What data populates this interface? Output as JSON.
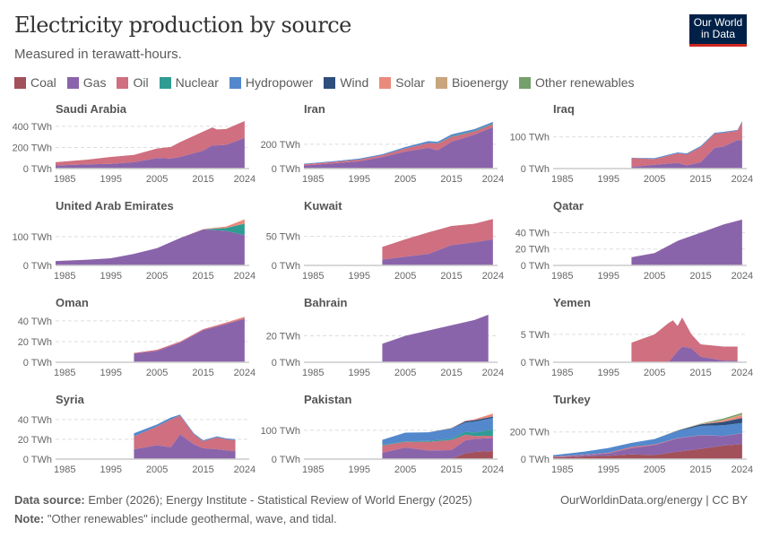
{
  "title": "Electricity production by source",
  "subtitle": "Measured in terawatt-hours.",
  "logo": "Our World in Data",
  "footer": {
    "source_label": "Data source:",
    "source": "Ember (2026); Energy Institute - Statistical Review of World Energy (2025)",
    "note_label": "Note:",
    "note": "\"Other renewables\" include geothermal, wave, and tidal.",
    "credit": "OurWorldinData.org/energy | CC BY"
  },
  "chart_data": {
    "type": "area",
    "stacked": true,
    "unit": "TWh",
    "xlim": [
      1983,
      2025
    ],
    "xticks": [
      1985,
      1995,
      2005,
      2015,
      2024
    ],
    "grid": "dashed horizontal",
    "legend_position": "top",
    "sources": [
      "Coal",
      "Gas",
      "Oil",
      "Nuclear",
      "Hydropower",
      "Wind",
      "Solar",
      "Bioenergy",
      "Other renewables"
    ],
    "colors": {
      "Coal": "#a2505a",
      "Gas": "#8a64ab",
      "Oil": "#cf6f7f",
      "Nuclear": "#2f9c93",
      "Hydropower": "#5388cc",
      "Wind": "#2e4f7c",
      "Solar": "#ea8a7c",
      "Bioenergy": "#c8a57c",
      "Other renewables": "#74a06a"
    },
    "panels": [
      {
        "name": "Saudi Arabia",
        "ylim": [
          0,
          450
        ],
        "yticks": [
          0,
          200,
          400
        ],
        "years": [
          1983,
          1990,
          1995,
          2000,
          2005,
          2008,
          2010,
          2015,
          2017,
          2018,
          2020,
          2024
        ],
        "series": {
          "Gas": [
            30,
            40,
            45,
            60,
            100,
            95,
            110,
            170,
            220,
            220,
            225,
            290
          ],
          "Oil": [
            30,
            45,
            65,
            70,
            90,
            110,
            140,
            180,
            170,
            150,
            150,
            160
          ]
        }
      },
      {
        "name": "Iran",
        "ylim": [
          0,
          390
        ],
        "yticks": [
          0,
          200
        ],
        "years": [
          1983,
          1990,
          1995,
          2000,
          2005,
          2010,
          2012,
          2015,
          2020,
          2024
        ],
        "series": {
          "Gas": [
            25,
            45,
            60,
            95,
            140,
            170,
            150,
            220,
            280,
            340
          ],
          "Oil": [
            10,
            12,
            14,
            15,
            25,
            40,
            55,
            40,
            25,
            25
          ],
          "Hydropower": [
            5,
            6,
            8,
            8,
            12,
            15,
            12,
            15,
            12,
            10
          ],
          "Nuclear": [
            0,
            0,
            0,
            0,
            0,
            0,
            2,
            4,
            6,
            6
          ],
          "Wind": [
            0,
            0,
            0,
            0,
            0,
            0,
            1,
            1,
            1,
            2
          ]
        }
      },
      {
        "name": "Iraq",
        "ylim": [
          0,
          150
        ],
        "yticks": [
          0,
          100
        ],
        "years": [
          2000,
          2005,
          2010,
          2012,
          2015,
          2018,
          2020,
          2023,
          2024
        ],
        "series": {
          "Gas": [
            5,
            12,
            18,
            10,
            20,
            65,
            70,
            90,
            90
          ],
          "Oil": [
            28,
            18,
            30,
            35,
            48,
            45,
            43,
            30,
            58
          ],
          "Hydropower": [
            1,
            3,
            3,
            3,
            3,
            3,
            3,
            2,
            2
          ]
        }
      },
      {
        "name": "United Arab Emirates",
        "ylim": [
          0,
          165
        ],
        "yticks": [
          0,
          100
        ],
        "years": [
          1983,
          1990,
          1995,
          2000,
          2005,
          2010,
          2015,
          2020,
          2024
        ],
        "series": {
          "Gas": [
            15,
            20,
            25,
            40,
            60,
            95,
            125,
            120,
            105
          ],
          "Nuclear": [
            0,
            0,
            0,
            0,
            0,
            0,
            0,
            10,
            40
          ],
          "Solar": [
            0,
            0,
            0,
            0,
            0,
            0,
            1,
            5,
            15
          ]
        }
      },
      {
        "name": "Kuwait",
        "ylim": [
          0,
          82
        ],
        "yticks": [
          0,
          50
        ],
        "years": [
          2000,
          2005,
          2010,
          2015,
          2020,
          2024
        ],
        "series": {
          "Gas": [
            10,
            15,
            20,
            35,
            40,
            45
          ],
          "Oil": [
            22,
            30,
            37,
            33,
            32,
            35
          ]
        }
      },
      {
        "name": "Qatar",
        "ylim": [
          0,
          58
        ],
        "yticks": [
          0,
          20,
          40
        ],
        "years": [
          2000,
          2005,
          2010,
          2015,
          2020,
          2024
        ],
        "series": {
          "Gas": [
            10,
            15,
            30,
            40,
            50,
            56
          ]
        }
      },
      {
        "name": "Oman",
        "ylim": [
          0,
          46
        ],
        "yticks": [
          0,
          20,
          40
        ],
        "years": [
          2000,
          2005,
          2010,
          2015,
          2020,
          2024
        ],
        "series": {
          "Gas": [
            8.5,
            11,
            19,
            31,
            37,
            42
          ],
          "Oil": [
            0.5,
            1,
            1,
            1,
            1,
            1
          ],
          "Solar": [
            0,
            0,
            0,
            0,
            0.5,
            1
          ]
        }
      },
      {
        "name": "Bahrain",
        "ylim": [
          0,
          36
        ],
        "yticks": [
          0,
          20
        ],
        "years": [
          2000,
          2005,
          2010,
          2015,
          2020,
          2023
        ],
        "series": {
          "Gas": [
            14,
            20,
            24,
            28,
            32,
            36
          ]
        }
      },
      {
        "name": "Yemen",
        "ylim": [
          0,
          8.5
        ],
        "yticks": [
          0,
          5
        ],
        "years": [
          2000,
          2005,
          2008,
          2009,
          2010,
          2011,
          2013,
          2015,
          2020,
          2023
        ],
        "series": {
          "Gas": [
            0,
            0,
            0,
            1,
            2,
            2.8,
            2.5,
            1,
            0.3,
            0.3
          ],
          "Oil": [
            3.5,
            5,
            7,
            6.5,
            4.5,
            5.2,
            2.5,
            2.2,
            2.5,
            2.5
          ]
        }
      },
      {
        "name": "Syria",
        "ylim": [
          0,
          48
        ],
        "yticks": [
          0,
          20,
          40
        ],
        "years": [
          2000,
          2005,
          2008,
          2010,
          2013,
          2015,
          2018,
          2020,
          2022
        ],
        "series": {
          "Gas": [
            10,
            14,
            12,
            25,
            15,
            11,
            10,
            9,
            8
          ],
          "Oil": [
            13,
            19,
            28,
            19,
            10,
            7,
            12,
            11,
            11
          ],
          "Hydropower": [
            3,
            2,
            2,
            1,
            1,
            1,
            1,
            1,
            1
          ]
        }
      },
      {
        "name": "Pakistan",
        "ylim": [
          0,
          165
        ],
        "yticks": [
          0,
          100
        ],
        "years": [
          2000,
          2005,
          2010,
          2015,
          2018,
          2020,
          2024
        ],
        "series": {
          "Coal": [
            0,
            0,
            0,
            1,
            20,
            25,
            28
          ],
          "Gas": [
            22,
            40,
            30,
            30,
            45,
            45,
            45
          ],
          "Oil": [
            25,
            20,
            30,
            35,
            20,
            10,
            8
          ],
          "Nuclear": [
            2,
            2,
            3,
            5,
            10,
            12,
            22
          ],
          "Hydropower": [
            18,
            30,
            30,
            35,
            32,
            38,
            40
          ],
          "Wind": [
            0,
            0,
            0,
            1,
            4,
            5,
            5
          ],
          "Solar": [
            0,
            0,
            0,
            1,
            2,
            3,
            10
          ]
        }
      },
      {
        "name": "Turkey",
        "ylim": [
          0,
          350
        ],
        "yticks": [
          0,
          200
        ],
        "years": [
          1983,
          1990,
          1995,
          2000,
          2005,
          2010,
          2015,
          2020,
          2024
        ],
        "series": {
          "Coal": [
            12,
            20,
            25,
            35,
            30,
            55,
            75,
            100,
            110
          ],
          "Gas": [
            0,
            10,
            17,
            46,
            73,
            98,
            100,
            70,
            80
          ],
          "Oil": [
            6,
            3,
            5,
            9,
            5,
            2,
            2,
            1,
            1
          ],
          "Hydropower": [
            11,
            23,
            35,
            30,
            40,
            52,
            67,
            78,
            75
          ],
          "Wind": [
            0,
            0,
            0,
            0,
            0,
            3,
            12,
            25,
            37
          ],
          "Solar": [
            0,
            0,
            0,
            0,
            0,
            0,
            1,
            11,
            20
          ],
          "Bioenergy": [
            0,
            0,
            0,
            0,
            0,
            1,
            2,
            5,
            8
          ],
          "Other renewables": [
            0,
            0,
            0,
            0,
            0,
            1,
            3,
            10,
            10
          ]
        }
      }
    ]
  }
}
